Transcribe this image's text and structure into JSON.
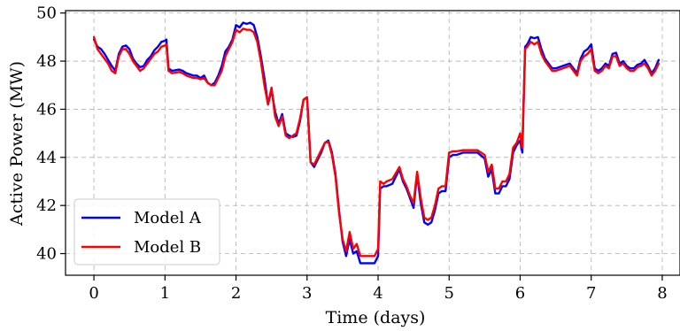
{
  "chart_data": {
    "type": "line",
    "title": "",
    "xlabel": "Time (days)",
    "ylabel": "Active Power (MW)",
    "xlim": [
      -0.4,
      8.25
    ],
    "ylim": [
      39.1,
      50.1
    ],
    "xticks": [
      0,
      1,
      2,
      3,
      4,
      5,
      6,
      7,
      8
    ],
    "yticks": [
      40,
      42,
      44,
      46,
      48,
      50
    ],
    "grid": true,
    "legend_position": "lower-left",
    "series": [
      {
        "name": "Model A",
        "color": "#0000ff",
        "points": [
          [
            0.0,
            48.9
          ],
          [
            0.05,
            48.6
          ],
          [
            0.1,
            48.5
          ],
          [
            0.15,
            48.3
          ],
          [
            0.2,
            48.05
          ],
          [
            0.25,
            47.8
          ],
          [
            0.3,
            47.6
          ],
          [
            0.35,
            48.3
          ],
          [
            0.4,
            48.6
          ],
          [
            0.45,
            48.65
          ],
          [
            0.5,
            48.5
          ],
          [
            0.55,
            48.1
          ],
          [
            0.6,
            47.9
          ],
          [
            0.65,
            47.75
          ],
          [
            0.7,
            47.8
          ],
          [
            0.75,
            48.05
          ],
          [
            0.8,
            48.2
          ],
          [
            0.85,
            48.45
          ],
          [
            0.9,
            48.6
          ],
          [
            0.95,
            48.8
          ],
          [
            1.0,
            48.85
          ],
          [
            1.02,
            48.9
          ],
          [
            1.05,
            47.7
          ],
          [
            1.1,
            47.6
          ],
          [
            1.2,
            47.65
          ],
          [
            1.25,
            47.6
          ],
          [
            1.3,
            47.5
          ],
          [
            1.35,
            47.45
          ],
          [
            1.4,
            47.4
          ],
          [
            1.45,
            47.4
          ],
          [
            1.5,
            47.3
          ],
          [
            1.55,
            47.4
          ],
          [
            1.6,
            47.1
          ],
          [
            1.65,
            47.0
          ],
          [
            1.7,
            47.1
          ],
          [
            1.75,
            47.4
          ],
          [
            1.8,
            47.8
          ],
          [
            1.85,
            48.4
          ],
          [
            1.9,
            48.6
          ],
          [
            1.95,
            48.9
          ],
          [
            2.0,
            49.5
          ],
          [
            2.05,
            49.4
          ],
          [
            2.1,
            49.6
          ],
          [
            2.15,
            49.55
          ],
          [
            2.2,
            49.6
          ],
          [
            2.25,
            49.5
          ],
          [
            2.3,
            49.0
          ],
          [
            2.35,
            48.2
          ],
          [
            2.4,
            47.3
          ],
          [
            2.45,
            46.2
          ],
          [
            2.5,
            46.8
          ],
          [
            2.55,
            45.9
          ],
          [
            2.6,
            45.4
          ],
          [
            2.65,
            45.8
          ],
          [
            2.7,
            45.0
          ],
          [
            2.75,
            44.9
          ],
          [
            2.8,
            44.85
          ],
          [
            2.85,
            44.9
          ],
          [
            2.9,
            45.5
          ],
          [
            2.95,
            46.4
          ],
          [
            3.0,
            46.5
          ],
          [
            3.05,
            43.8
          ],
          [
            3.1,
            43.6
          ],
          [
            3.15,
            43.9
          ],
          [
            3.2,
            44.2
          ],
          [
            3.25,
            44.6
          ],
          [
            3.3,
            44.7
          ],
          [
            3.35,
            44.2
          ],
          [
            3.4,
            43.3
          ],
          [
            3.45,
            41.8
          ],
          [
            3.5,
            40.5
          ],
          [
            3.55,
            39.9
          ],
          [
            3.6,
            40.6
          ],
          [
            3.65,
            40.0
          ],
          [
            3.7,
            40.1
          ],
          [
            3.75,
            39.6
          ],
          [
            3.8,
            39.6
          ],
          [
            3.85,
            39.6
          ],
          [
            3.9,
            39.6
          ],
          [
            3.95,
            39.6
          ],
          [
            4.0,
            39.9
          ],
          [
            4.03,
            42.7
          ],
          [
            4.08,
            42.8
          ],
          [
            4.12,
            42.8
          ],
          [
            4.2,
            42.9
          ],
          [
            4.3,
            43.5
          ],
          [
            4.35,
            43.0
          ],
          [
            4.4,
            42.7
          ],
          [
            4.45,
            42.3
          ],
          [
            4.5,
            41.9
          ],
          [
            4.55,
            43.3
          ],
          [
            4.6,
            42.1
          ],
          [
            4.65,
            41.3
          ],
          [
            4.7,
            41.2
          ],
          [
            4.75,
            41.3
          ],
          [
            4.8,
            41.8
          ],
          [
            4.85,
            42.5
          ],
          [
            4.9,
            42.6
          ],
          [
            4.95,
            42.6
          ],
          [
            5.0,
            44.0
          ],
          [
            5.05,
            44.1
          ],
          [
            5.1,
            44.1
          ],
          [
            5.2,
            44.2
          ],
          [
            5.3,
            44.2
          ],
          [
            5.4,
            44.2
          ],
          [
            5.5,
            43.95
          ],
          [
            5.55,
            43.2
          ],
          [
            5.6,
            43.5
          ],
          [
            5.65,
            42.5
          ],
          [
            5.7,
            42.5
          ],
          [
            5.75,
            42.8
          ],
          [
            5.8,
            42.8
          ],
          [
            5.85,
            43.1
          ],
          [
            5.9,
            44.2
          ],
          [
            5.95,
            44.5
          ],
          [
            6.0,
            44.7
          ],
          [
            6.03,
            44.2
          ],
          [
            6.07,
            48.6
          ],
          [
            6.1,
            48.7
          ],
          [
            6.15,
            49.0
          ],
          [
            6.2,
            48.95
          ],
          [
            6.25,
            49.0
          ],
          [
            6.3,
            48.5
          ],
          [
            6.35,
            48.1
          ],
          [
            6.4,
            47.9
          ],
          [
            6.45,
            47.7
          ],
          [
            6.5,
            47.7
          ],
          [
            6.6,
            47.8
          ],
          [
            6.7,
            47.9
          ],
          [
            6.8,
            47.5
          ],
          [
            6.85,
            48.1
          ],
          [
            6.9,
            48.4
          ],
          [
            6.95,
            48.5
          ],
          [
            7.0,
            48.7
          ],
          [
            7.05,
            47.7
          ],
          [
            7.1,
            47.6
          ],
          [
            7.15,
            47.7
          ],
          [
            7.2,
            47.9
          ],
          [
            7.25,
            47.8
          ],
          [
            7.3,
            48.3
          ],
          [
            7.35,
            48.35
          ],
          [
            7.4,
            47.9
          ],
          [
            7.45,
            48.0
          ],
          [
            7.5,
            47.8
          ],
          [
            7.55,
            47.7
          ],
          [
            7.6,
            47.7
          ],
          [
            7.65,
            47.85
          ],
          [
            7.7,
            47.9
          ],
          [
            7.75,
            48.05
          ],
          [
            7.8,
            47.8
          ],
          [
            7.85,
            47.5
          ],
          [
            7.9,
            47.7
          ],
          [
            7.95,
            48.05
          ]
        ]
      },
      {
        "name": "Model B",
        "color": "#ff0000",
        "points": [
          [
            0.0,
            49.0
          ],
          [
            0.05,
            48.5
          ],
          [
            0.1,
            48.3
          ],
          [
            0.15,
            48.1
          ],
          [
            0.2,
            47.9
          ],
          [
            0.25,
            47.6
          ],
          [
            0.3,
            47.5
          ],
          [
            0.35,
            48.2
          ],
          [
            0.4,
            48.5
          ],
          [
            0.45,
            48.5
          ],
          [
            0.5,
            48.3
          ],
          [
            0.55,
            48.0
          ],
          [
            0.6,
            47.8
          ],
          [
            0.65,
            47.6
          ],
          [
            0.7,
            47.7
          ],
          [
            0.75,
            47.9
          ],
          [
            0.8,
            48.1
          ],
          [
            0.85,
            48.3
          ],
          [
            0.9,
            48.4
          ],
          [
            0.95,
            48.6
          ],
          [
            1.0,
            48.65
          ],
          [
            1.02,
            48.7
          ],
          [
            1.05,
            47.6
          ],
          [
            1.1,
            47.5
          ],
          [
            1.2,
            47.55
          ],
          [
            1.25,
            47.5
          ],
          [
            1.3,
            47.4
          ],
          [
            1.35,
            47.35
          ],
          [
            1.4,
            47.3
          ],
          [
            1.45,
            47.3
          ],
          [
            1.5,
            47.25
          ],
          [
            1.55,
            47.3
          ],
          [
            1.6,
            47.1
          ],
          [
            1.65,
            47.0
          ],
          [
            1.7,
            47.0
          ],
          [
            1.75,
            47.3
          ],
          [
            1.8,
            47.6
          ],
          [
            1.85,
            48.2
          ],
          [
            1.9,
            48.5
          ],
          [
            1.95,
            48.8
          ],
          [
            2.0,
            49.3
          ],
          [
            2.05,
            49.2
          ],
          [
            2.1,
            49.35
          ],
          [
            2.15,
            49.3
          ],
          [
            2.2,
            49.3
          ],
          [
            2.25,
            49.2
          ],
          [
            2.3,
            48.8
          ],
          [
            2.35,
            48.0
          ],
          [
            2.4,
            47.0
          ],
          [
            2.45,
            46.2
          ],
          [
            2.5,
            46.9
          ],
          [
            2.55,
            45.7
          ],
          [
            2.6,
            45.3
          ],
          [
            2.65,
            45.7
          ],
          [
            2.7,
            44.9
          ],
          [
            2.75,
            44.8
          ],
          [
            2.8,
            44.9
          ],
          [
            2.85,
            45.0
          ],
          [
            2.9,
            45.6
          ],
          [
            2.95,
            46.4
          ],
          [
            3.0,
            46.5
          ],
          [
            3.05,
            43.8
          ],
          [
            3.1,
            43.7
          ],
          [
            3.15,
            44.0
          ],
          [
            3.2,
            44.3
          ],
          [
            3.25,
            44.6
          ],
          [
            3.3,
            44.65
          ],
          [
            3.35,
            44.1
          ],
          [
            3.4,
            43.2
          ],
          [
            3.45,
            41.7
          ],
          [
            3.5,
            40.6
          ],
          [
            3.55,
            40.1
          ],
          [
            3.6,
            40.9
          ],
          [
            3.65,
            40.2
          ],
          [
            3.7,
            40.4
          ],
          [
            3.75,
            39.9
          ],
          [
            3.8,
            39.9
          ],
          [
            3.85,
            39.9
          ],
          [
            3.9,
            39.9
          ],
          [
            3.95,
            39.9
          ],
          [
            4.0,
            40.2
          ],
          [
            4.03,
            43.0
          ],
          [
            4.08,
            42.9
          ],
          [
            4.12,
            43.0
          ],
          [
            4.2,
            43.1
          ],
          [
            4.3,
            43.6
          ],
          [
            4.35,
            43.1
          ],
          [
            4.4,
            42.8
          ],
          [
            4.45,
            42.4
          ],
          [
            4.5,
            42.1
          ],
          [
            4.55,
            43.4
          ],
          [
            4.6,
            42.3
          ],
          [
            4.65,
            41.5
          ],
          [
            4.7,
            41.4
          ],
          [
            4.75,
            41.5
          ],
          [
            4.8,
            42.0
          ],
          [
            4.85,
            42.7
          ],
          [
            4.9,
            42.8
          ],
          [
            4.95,
            42.8
          ],
          [
            5.0,
            44.2
          ],
          [
            5.05,
            44.25
          ],
          [
            5.1,
            44.25
          ],
          [
            5.2,
            44.3
          ],
          [
            5.3,
            44.3
          ],
          [
            5.4,
            44.3
          ],
          [
            5.5,
            44.1
          ],
          [
            5.55,
            43.4
          ],
          [
            5.6,
            43.7
          ],
          [
            5.65,
            42.7
          ],
          [
            5.7,
            42.7
          ],
          [
            5.75,
            43.0
          ],
          [
            5.8,
            43.0
          ],
          [
            5.85,
            43.3
          ],
          [
            5.9,
            44.4
          ],
          [
            5.95,
            44.6
          ],
          [
            6.0,
            45.0
          ],
          [
            6.03,
            44.4
          ],
          [
            6.07,
            48.5
          ],
          [
            6.1,
            48.6
          ],
          [
            6.15,
            48.8
          ],
          [
            6.2,
            48.7
          ],
          [
            6.25,
            48.8
          ],
          [
            6.3,
            48.3
          ],
          [
            6.35,
            48.0
          ],
          [
            6.4,
            47.8
          ],
          [
            6.45,
            47.6
          ],
          [
            6.5,
            47.6
          ],
          [
            6.6,
            47.7
          ],
          [
            6.7,
            47.8
          ],
          [
            6.8,
            47.4
          ],
          [
            6.85,
            48.0
          ],
          [
            6.9,
            48.2
          ],
          [
            6.95,
            48.3
          ],
          [
            7.0,
            48.5
          ],
          [
            7.05,
            47.6
          ],
          [
            7.1,
            47.5
          ],
          [
            7.15,
            47.6
          ],
          [
            7.2,
            47.8
          ],
          [
            7.25,
            47.7
          ],
          [
            7.3,
            48.2
          ],
          [
            7.35,
            48.2
          ],
          [
            7.4,
            47.8
          ],
          [
            7.45,
            47.9
          ],
          [
            7.5,
            47.7
          ],
          [
            7.55,
            47.6
          ],
          [
            7.6,
            47.6
          ],
          [
            7.65,
            47.75
          ],
          [
            7.7,
            47.8
          ],
          [
            7.75,
            47.9
          ],
          [
            7.8,
            47.7
          ],
          [
            7.85,
            47.4
          ],
          [
            7.9,
            47.6
          ],
          [
            7.95,
            47.9
          ]
        ]
      }
    ]
  }
}
